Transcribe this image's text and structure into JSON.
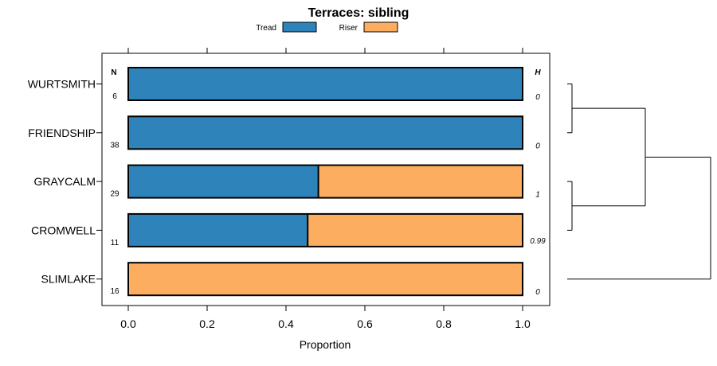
{
  "chart_data": {
    "type": "bar",
    "orientation": "horizontal",
    "stacked": true,
    "title": "Terraces: sibling",
    "xlabel": "Proportion",
    "ylabel": "",
    "xlim": [
      0,
      1
    ],
    "x_ticks": [
      "0.0",
      "0.2",
      "0.4",
      "0.6",
      "0.8",
      "1.0"
    ],
    "legend_position": "top",
    "categories": [
      "WURTSMITH",
      "FRIENDSHIP",
      "GRAYCALM",
      "CROMWELL",
      "SLIMLAKE"
    ],
    "series": [
      {
        "name": "Tread",
        "color": "#2e83bb",
        "values": [
          1.0,
          1.0,
          0.482,
          0.455,
          0.0
        ]
      },
      {
        "name": "Riser",
        "color": "#fdad60",
        "values": [
          0.0,
          0.0,
          0.518,
          0.545,
          1.0
        ]
      }
    ],
    "n_header": "N",
    "n_values": [
      "6",
      "38",
      "29",
      "11",
      "16"
    ],
    "h_header": "H",
    "h_values": [
      "0",
      "0",
      "1",
      "0.99",
      "0"
    ],
    "dendrogram": "hierarchical clustering of rows"
  }
}
